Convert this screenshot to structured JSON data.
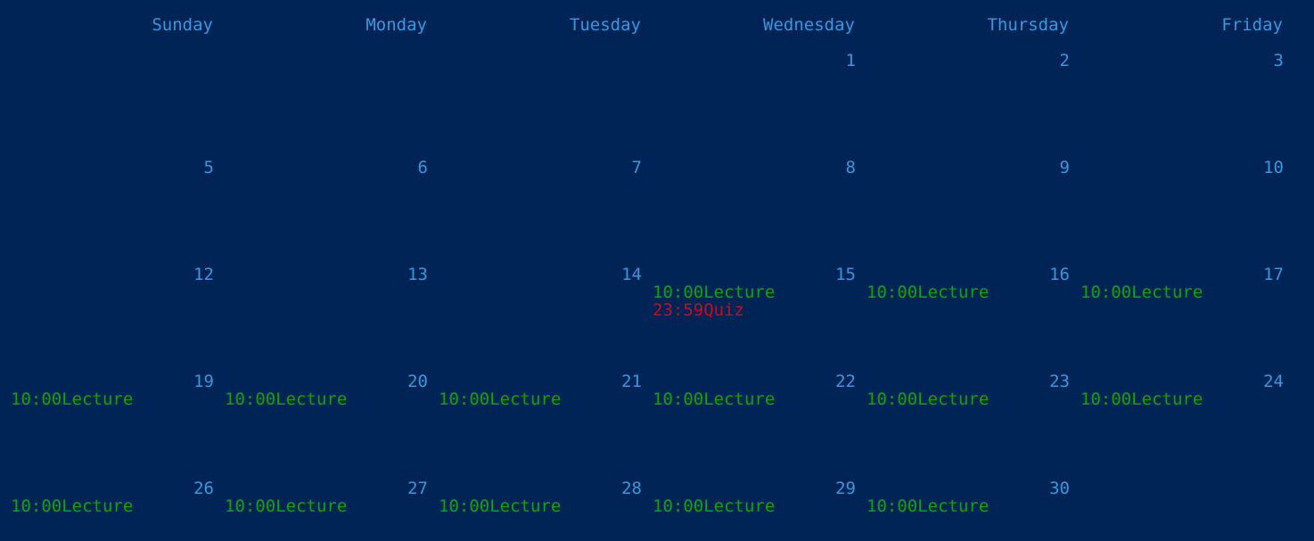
{
  "colors": {
    "background": "#012456",
    "header_and_day_numbers": "#3a96dd",
    "lecture_event": "#13a10e",
    "quiz_event": "#c50f1f"
  },
  "weekdays": [
    "Sunday",
    "Monday",
    "Tuesday",
    "Wednesday",
    "Thursday",
    "Friday"
  ],
  "weeks": [
    [
      {
        "day": "",
        "events": []
      },
      {
        "day": "",
        "events": []
      },
      {
        "day": "",
        "events": []
      },
      {
        "day": "1",
        "events": []
      },
      {
        "day": "2",
        "events": []
      },
      {
        "day": "3",
        "events": []
      }
    ],
    [
      {
        "day": "5",
        "events": []
      },
      {
        "day": "6",
        "events": []
      },
      {
        "day": "7",
        "events": []
      },
      {
        "day": "8",
        "events": []
      },
      {
        "day": "9",
        "events": []
      },
      {
        "day": "10",
        "events": []
      }
    ],
    [
      {
        "day": "12",
        "events": []
      },
      {
        "day": "13",
        "events": []
      },
      {
        "day": "14",
        "events": []
      },
      {
        "day": "15",
        "events": [
          {
            "time": "10:00",
            "title": "Lecture",
            "kind": "lecture"
          },
          {
            "time": "23:59",
            "title": "Quiz",
            "kind": "quiz"
          }
        ]
      },
      {
        "day": "16",
        "events": [
          {
            "time": "10:00",
            "title": "Lecture",
            "kind": "lecture"
          }
        ]
      },
      {
        "day": "17",
        "events": [
          {
            "time": "10:00",
            "title": "Lecture",
            "kind": "lecture"
          }
        ]
      }
    ],
    [
      {
        "day": "19",
        "events": [
          {
            "time": "10:00",
            "title": "Lecture",
            "kind": "lecture"
          }
        ]
      },
      {
        "day": "20",
        "events": [
          {
            "time": "10:00",
            "title": "Lecture",
            "kind": "lecture"
          }
        ]
      },
      {
        "day": "21",
        "events": [
          {
            "time": "10:00",
            "title": "Lecture",
            "kind": "lecture"
          }
        ]
      },
      {
        "day": "22",
        "events": [
          {
            "time": "10:00",
            "title": "Lecture",
            "kind": "lecture"
          }
        ]
      },
      {
        "day": "23",
        "events": [
          {
            "time": "10:00",
            "title": "Lecture",
            "kind": "lecture"
          }
        ]
      },
      {
        "day": "24",
        "events": [
          {
            "time": "10:00",
            "title": "Lecture",
            "kind": "lecture"
          }
        ]
      }
    ],
    [
      {
        "day": "26",
        "events": [
          {
            "time": "10:00",
            "title": "Lecture",
            "kind": "lecture"
          }
        ]
      },
      {
        "day": "27",
        "events": [
          {
            "time": "10:00",
            "title": "Lecture",
            "kind": "lecture"
          }
        ]
      },
      {
        "day": "28",
        "events": [
          {
            "time": "10:00",
            "title": "Lecture",
            "kind": "lecture"
          }
        ]
      },
      {
        "day": "29",
        "events": [
          {
            "time": "10:00",
            "title": "Lecture",
            "kind": "lecture"
          }
        ]
      },
      {
        "day": "30",
        "events": [
          {
            "time": "10:00",
            "title": "Lecture",
            "kind": "lecture"
          }
        ]
      },
      {
        "day": "",
        "events": []
      }
    ]
  ]
}
